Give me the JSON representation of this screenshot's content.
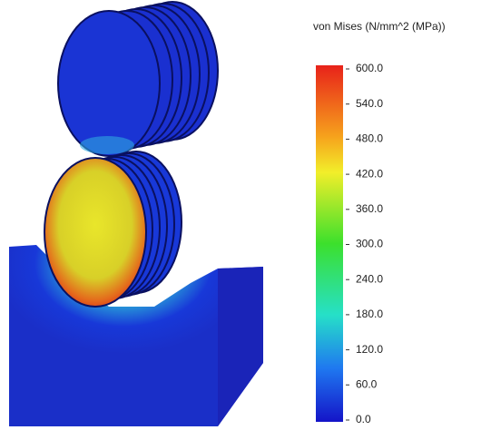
{
  "legend": {
    "title": "von Mises (N/mm^2 (MPa))",
    "labels": [
      "600.0",
      "540.0",
      "480.0",
      "420.0",
      "360.0",
      "300.0",
      "240.0",
      "180.0",
      "120.0",
      "60.0",
      "0.0"
    ]
  }
}
